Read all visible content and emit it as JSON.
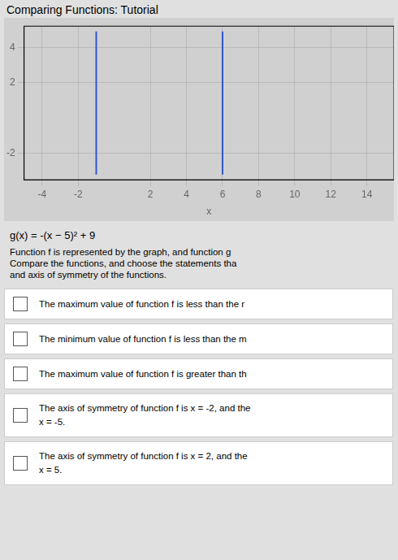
{
  "chart_data": {
    "type": "line",
    "title": "Comparing Functions: Tutorial",
    "x_label": "x",
    "series": [
      {
        "color": "#3355cc",
        "x": [
          -1,
          -1
        ],
        "values": [
          -3.2,
          4.9
        ]
      },
      {
        "color": "#3355cc",
        "x": [
          6,
          6
        ],
        "values": [
          -3.2,
          4.9
        ]
      }
    ],
    "xlim": [
      -5,
      15.5
    ],
    "ylim": [
      -3.5,
      5.2
    ],
    "xticks": [
      -4,
      -2,
      2,
      4,
      6,
      8,
      10,
      12,
      14
    ],
    "yticks": [
      -2,
      2,
      4
    ],
    "grid": true,
    "annotations": [
      "g(x) = -(x − 5)² + 9",
      "Function f is represented by the graph, and function g",
      "Compare the functions, and choose the statements tha",
      "and axis of symmetry of the functions.",
      "The maximum value of function f is less than the r",
      "The minimum value of function f is less than the m",
      "The maximum value of function f is greater than th",
      "The axis of symmetry of function f is x = -2, and the\nx = -5.",
      "The axis of symmetry of function f is x = 2, and the\nx = 5."
    ]
  }
}
